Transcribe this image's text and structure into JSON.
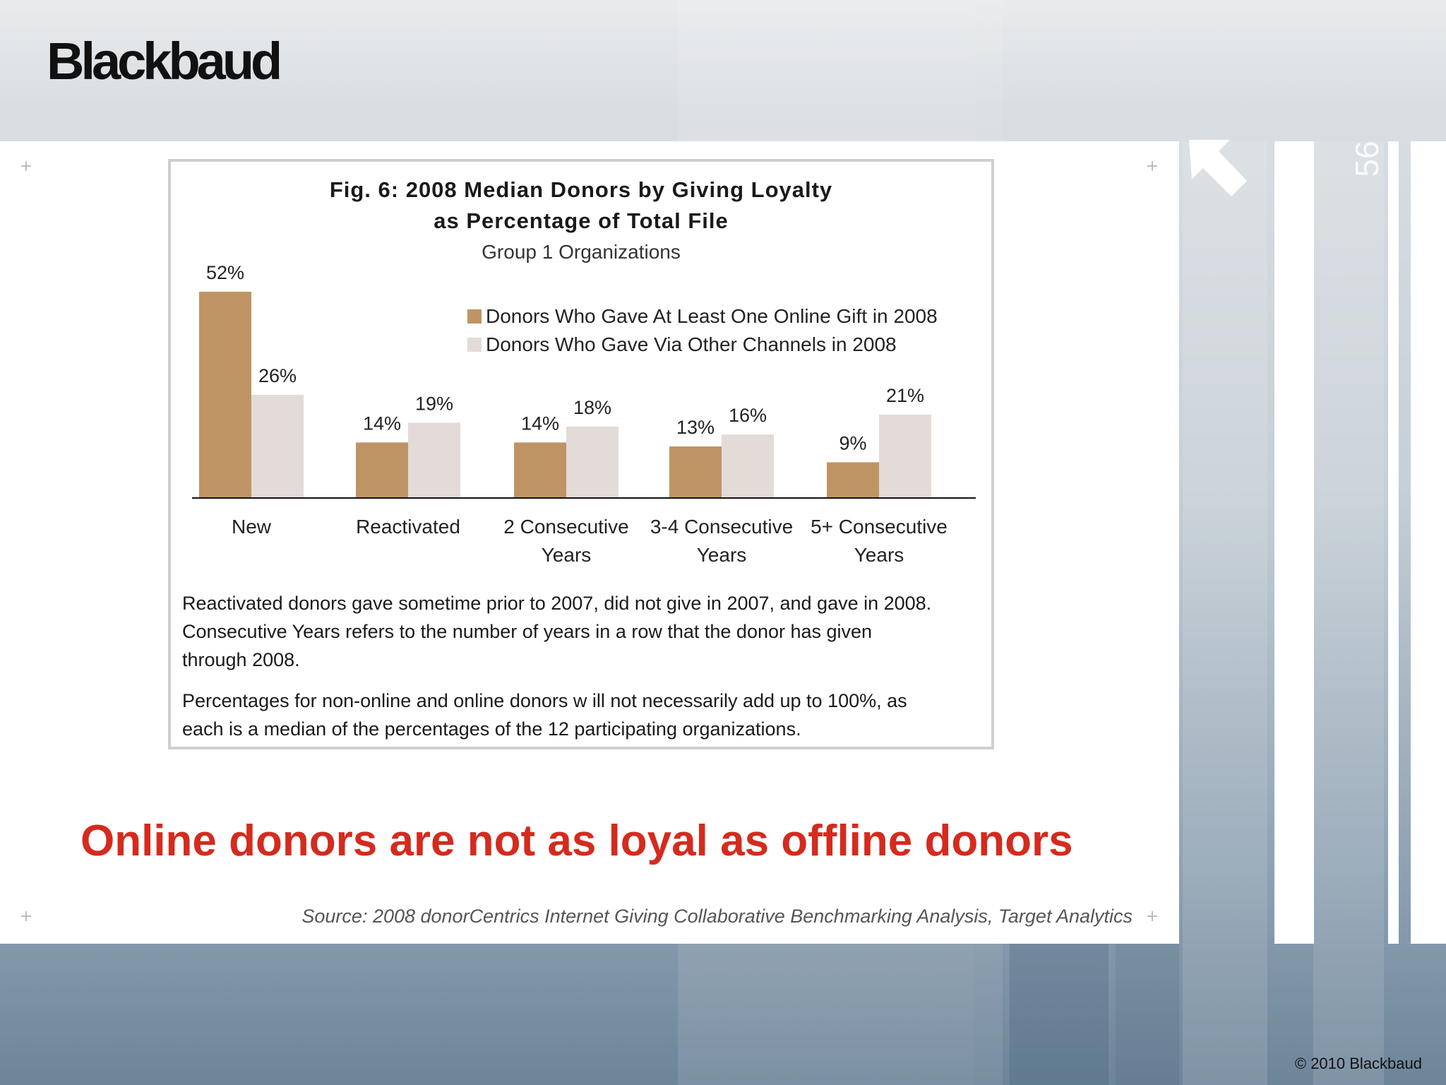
{
  "brand": {
    "logo_text": "Blackbaud"
  },
  "slide": {
    "number": "56",
    "headline": "Online donors are not as loyal as offline donors",
    "source": "Source:  2008 donorCentrics Internet Giving Collaborative Benchmarking Analysis, Target Analytics",
    "copyright": "© 2010 Blackbaud"
  },
  "colors": {
    "online": "#be9465",
    "other": "#e2dbd8",
    "headline": "#d42b1e"
  },
  "chart_data": {
    "type": "bar",
    "title_line1": "Fig. 6: 2008 Median Donors by Giving Loyalty",
    "title_line2": "as Percentage of Total File",
    "subtitle": "Group 1 Organizations",
    "categories": [
      [
        "New"
      ],
      [
        "Reactivated"
      ],
      [
        "2 Consecutive",
        "Years"
      ],
      [
        "3-4 Consecutive",
        "Years"
      ],
      [
        "5+ Consecutive",
        "Years"
      ]
    ],
    "series": [
      {
        "name": "Donors Who Gave At Least One Online Gift in 2008",
        "values": [
          52,
          14,
          14,
          13,
          9
        ],
        "labels": [
          "52%",
          "14%",
          "14%",
          "13%",
          "9%"
        ],
        "color": "#be9465"
      },
      {
        "name": "Donors Who Gave Via Other Channels in 2008",
        "values": [
          26,
          19,
          18,
          16,
          21
        ],
        "labels": [
          "26%",
          "19%",
          "18%",
          "16%",
          "21%"
        ],
        "color": "#e2dbd8"
      }
    ],
    "ylim": [
      0,
      52
    ],
    "legend_position": "top-right",
    "grid": false,
    "notes": [
      [
        "Reactivated donors gave sometime prior to 2007, did not give in 2007, and gave in 2008.",
        "Consecutive Years refers to the number of years in a row  that the donor has given",
        "through 2008."
      ],
      [
        "Percentages for non-online and online donors w ill not necessarily add up to 100%, as",
        "each is a median of the percentages of the 12 participating organizations."
      ]
    ]
  }
}
